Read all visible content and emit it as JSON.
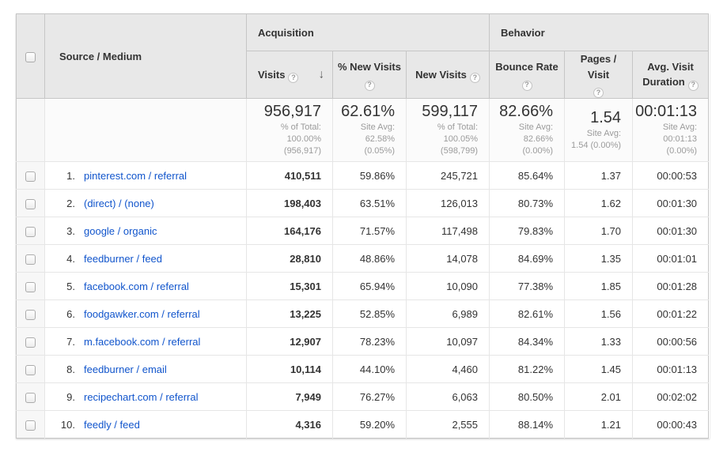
{
  "colors": {
    "link_blue": "#1155cc",
    "header_bg": "#e8e8e8"
  },
  "header": {
    "source_medium": "Source / Medium",
    "groups": {
      "acquisition": "Acquisition",
      "behavior": "Behavior"
    },
    "columns": {
      "visits": "Visits",
      "pct_new_visits": "% New Visits",
      "new_visits": "New Visits",
      "bounce_rate": "Bounce Rate",
      "pages_visit": "Pages / Visit",
      "avg_duration": "Avg. Visit Duration"
    },
    "help_icon": "?",
    "sort_arrow": "↓"
  },
  "summary": {
    "visits": {
      "value": "956,917",
      "sub": "% of Total:\n100.00%\n(956,917)"
    },
    "pct_new_visits": {
      "value": "62.61%",
      "sub": "Site Avg:\n62.58%\n(0.05%)"
    },
    "new_visits": {
      "value": "599,117",
      "sub": "% of Total:\n100.05%\n(598,799)"
    },
    "bounce_rate": {
      "value": "82.66%",
      "sub": "Site Avg:\n82.66%\n(0.00%)"
    },
    "pages_visit": {
      "value": "1.54",
      "sub": "Site Avg:\n1.54 (0.00%)"
    },
    "avg_duration": {
      "value": "00:01:13",
      "sub": "Site Avg:\n00:01:13\n(0.00%)"
    }
  },
  "rows": [
    {
      "num": "1.",
      "source": "pinterest.com / referral",
      "visits": "410,511",
      "pct_new_visits": "59.86%",
      "new_visits": "245,721",
      "bounce_rate": "85.64%",
      "pages_visit": "1.37",
      "avg_duration": "00:00:53"
    },
    {
      "num": "2.",
      "source": "(direct) / (none)",
      "visits": "198,403",
      "pct_new_visits": "63.51%",
      "new_visits": "126,013",
      "bounce_rate": "80.73%",
      "pages_visit": "1.62",
      "avg_duration": "00:01:30"
    },
    {
      "num": "3.",
      "source": "google / organic",
      "visits": "164,176",
      "pct_new_visits": "71.57%",
      "new_visits": "117,498",
      "bounce_rate": "79.83%",
      "pages_visit": "1.70",
      "avg_duration": "00:01:30"
    },
    {
      "num": "4.",
      "source": "feedburner / feed",
      "visits": "28,810",
      "pct_new_visits": "48.86%",
      "new_visits": "14,078",
      "bounce_rate": "84.69%",
      "pages_visit": "1.35",
      "avg_duration": "00:01:01"
    },
    {
      "num": "5.",
      "source": "facebook.com / referral",
      "visits": "15,301",
      "pct_new_visits": "65.94%",
      "new_visits": "10,090",
      "bounce_rate": "77.38%",
      "pages_visit": "1.85",
      "avg_duration": "00:01:28"
    },
    {
      "num": "6.",
      "source": "foodgawker.com / referral",
      "visits": "13,225",
      "pct_new_visits": "52.85%",
      "new_visits": "6,989",
      "bounce_rate": "82.61%",
      "pages_visit": "1.56",
      "avg_duration": "00:01:22"
    },
    {
      "num": "7.",
      "source": "m.facebook.com / referral",
      "visits": "12,907",
      "pct_new_visits": "78.23%",
      "new_visits": "10,097",
      "bounce_rate": "84.34%",
      "pages_visit": "1.33",
      "avg_duration": "00:00:56"
    },
    {
      "num": "8.",
      "source": "feedburner / email",
      "visits": "10,114",
      "pct_new_visits": "44.10%",
      "new_visits": "4,460",
      "bounce_rate": "81.22%",
      "pages_visit": "1.45",
      "avg_duration": "00:01:13"
    },
    {
      "num": "9.",
      "source": "recipechart.com / referral",
      "visits": "7,949",
      "pct_new_visits": "76.27%",
      "new_visits": "6,063",
      "bounce_rate": "80.50%",
      "pages_visit": "2.01",
      "avg_duration": "00:02:02"
    },
    {
      "num": "10.",
      "source": "feedly / feed",
      "visits": "4,316",
      "pct_new_visits": "59.20%",
      "new_visits": "2,555",
      "bounce_rate": "88.14%",
      "pages_visit": "1.21",
      "avg_duration": "00:00:43"
    }
  ]
}
